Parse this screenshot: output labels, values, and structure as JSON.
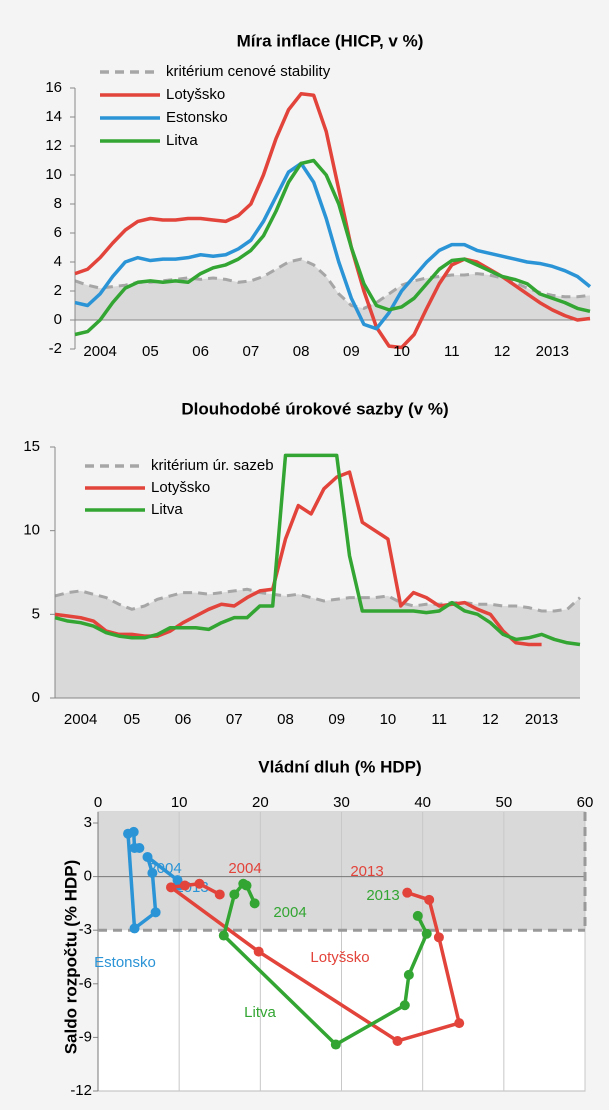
{
  "chart_data": [
    {
      "type": "line",
      "title": "Míra inflace (HICP, v %)",
      "categories": [
        null,
        null,
        "2004",
        null,
        null,
        null,
        "05",
        null,
        null,
        null,
        "06",
        null,
        null,
        null,
        "07",
        null,
        null,
        null,
        "08",
        null,
        null,
        null,
        "09",
        null,
        null,
        null,
        "10",
        null,
        null,
        null,
        "11",
        null,
        null,
        null,
        "12",
        null,
        null,
        null,
        "2013",
        null,
        null,
        null
      ],
      "ylim": [
        -2,
        16
      ],
      "yticks": [
        -2,
        0,
        2,
        4,
        6,
        8,
        10,
        12,
        14,
        16
      ],
      "series": [
        {
          "name": "kritérium cenové stability",
          "style": "area",
          "color": "#a6a6a6",
          "fill": "#d9d9d9",
          "values": [
            2.7,
            2.4,
            2.2,
            2.3,
            2.4,
            2.6,
            2.6,
            2.7,
            2.8,
            2.9,
            2.8,
            2.9,
            2.8,
            2.6,
            2.7,
            3.0,
            3.5,
            4.0,
            4.2,
            3.8,
            3.0,
            1.8,
            1.0,
            0.8,
            1.2,
            1.8,
            2.4,
            2.7,
            2.9,
            3.0,
            3.1,
            3.1,
            3.2,
            3.1,
            2.9,
            2.6,
            2.2,
            1.9,
            1.7,
            1.6,
            1.6,
            1.7
          ]
        },
        {
          "name": "Lotyšsko",
          "color": "#e2433a",
          "values": [
            3.2,
            3.5,
            4.3,
            5.3,
            6.2,
            6.8,
            7.0,
            6.9,
            6.9,
            7.0,
            7.0,
            6.9,
            6.8,
            7.2,
            8.0,
            10,
            12.5,
            14.5,
            15.6,
            15.5,
            13,
            9,
            5,
            2,
            -0.5,
            -1.8,
            -1.9,
            -1,
            0.8,
            2.5,
            3.8,
            4.2,
            4.0,
            3.5,
            3.0,
            2.4,
            1.8,
            1.2,
            0.7,
            0.3,
            0.0,
            0.1
          ]
        },
        {
          "name": "Estonsko",
          "color": "#2b94d6",
          "values": [
            1.2,
            1.0,
            1.8,
            3.0,
            4.0,
            4.3,
            4.1,
            4.2,
            4.2,
            4.3,
            4.5,
            4.4,
            4.5,
            4.9,
            5.5,
            6.8,
            8.5,
            10.2,
            10.8,
            9.5,
            7.0,
            4.0,
            1.5,
            -0.3,
            -0.6,
            0.5,
            2.0,
            3.0,
            4.0,
            4.8,
            5.2,
            5.2,
            4.8,
            4.6,
            4.4,
            4.2,
            4.0,
            3.9,
            3.7,
            3.4,
            3.0,
            2.3
          ]
        },
        {
          "name": "Litva",
          "color": "#33a532",
          "values": [
            -1.0,
            -0.8,
            0.0,
            1.2,
            2.2,
            2.6,
            2.7,
            2.6,
            2.7,
            2.6,
            3.2,
            3.6,
            3.8,
            4.2,
            4.8,
            5.8,
            7.5,
            9.5,
            10.8,
            11.0,
            10.0,
            8.0,
            5.0,
            2.5,
            1.0,
            0.7,
            0.9,
            1.5,
            2.5,
            3.5,
            4.1,
            4.2,
            3.8,
            3.4,
            3.0,
            2.8,
            2.5,
            1.8,
            1.5,
            1.2,
            0.8,
            0.6
          ]
        }
      ]
    },
    {
      "type": "line",
      "title": "Dlouhodobé úrokové sazby (v %)",
      "categories": [
        null,
        null,
        "2004",
        null,
        null,
        null,
        "05",
        null,
        null,
        null,
        "06",
        null,
        null,
        null,
        "07",
        null,
        null,
        null,
        "08",
        null,
        null,
        null,
        "09",
        null,
        null,
        null,
        "10",
        null,
        null,
        null,
        "11",
        null,
        null,
        null,
        "12",
        null,
        null,
        null,
        "2013",
        null,
        null,
        null
      ],
      "ylim": [
        0,
        15
      ],
      "yticks": [
        0,
        5,
        10,
        15
      ],
      "series": [
        {
          "name": "kritérium úr. sazeb",
          "style": "area",
          "color": "#a6a6a6",
          "fill": "#d9d9d9",
          "values": [
            6.1,
            6.3,
            6.4,
            6.2,
            6.0,
            5.6,
            5.3,
            5.5,
            5.9,
            6.1,
            6.3,
            6.3,
            6.2,
            6.3,
            6.4,
            6.5,
            6.3,
            6.2,
            6.1,
            6.2,
            6.0,
            5.8,
            5.9,
            6.0,
            6.0,
            6.0,
            6.1,
            5.7,
            5.5,
            5.6,
            5.6,
            5.7,
            5.7,
            5.6,
            5.6,
            5.5,
            5.5,
            5.4,
            5.2,
            5.2,
            5.3,
            6.0
          ]
        },
        {
          "name": "Lotyšsko",
          "color": "#e2433a",
          "values": [
            5.0,
            4.9,
            4.8,
            4.6,
            4.0,
            3.8,
            3.8,
            3.7,
            3.7,
            4.0,
            4.5,
            4.9,
            5.3,
            5.6,
            5.5,
            6.0,
            6.4,
            6.5,
            9.5,
            11.5,
            11.0,
            12.5,
            13.2,
            13.5,
            10.5,
            10.0,
            9.5,
            5.5,
            6.3,
            6.0,
            5.5,
            5.6,
            5.7,
            5.3,
            5.0,
            4.0,
            3.3,
            3.2,
            3.2,
            null,
            null,
            null
          ]
        },
        {
          "name": "Litva",
          "color": "#33a532",
          "values": [
            4.8,
            4.6,
            4.5,
            4.3,
            3.9,
            3.7,
            3.6,
            3.6,
            3.8,
            4.2,
            4.2,
            4.2,
            4.1,
            4.5,
            4.8,
            4.8,
            5.5,
            5.5,
            14.5,
            14.5,
            14.5,
            14.5,
            14.5,
            8.5,
            5.2,
            5.2,
            5.2,
            5.2,
            5.2,
            5.1,
            5.2,
            5.7,
            5.2,
            5.0,
            4.5,
            3.8,
            3.5,
            3.6,
            3.8,
            3.5,
            3.3,
            3.2
          ]
        }
      ]
    },
    {
      "type": "scatter",
      "title": "Vládní dluh (% HDP)",
      "y_label": "Saldo rozpočtu (% HDP)",
      "xlim": [
        0,
        60
      ],
      "xticks": [
        0,
        10,
        20,
        30,
        40,
        50,
        60
      ],
      "ylim": [
        -12,
        3
      ],
      "yticks": [
        3,
        0,
        -3,
        -6,
        -9,
        -12
      ],
      "reference": {
        "x": 60,
        "y": -3
      },
      "year_labels": [
        "2004",
        "2013"
      ],
      "series": [
        {
          "name": "Estonsko",
          "color": "#2b94d6",
          "x": [
            5.1,
            4.5,
            4.4,
            3.7,
            4.5,
            7.1,
            6.7,
            6.1,
            9.8,
            10.0
          ],
          "values": [
            1.6,
            1.6,
            2.5,
            2.4,
            -2.9,
            -2.0,
            0.2,
            1.1,
            -0.2,
            -0.5
          ]
        },
        {
          "name": "Lotyšsko",
          "color": "#e2433a",
          "x": [
            15.0,
            12.5,
            10.7,
            9.0,
            19.8,
            36.9,
            44.5,
            42.0,
            40.8,
            38.1
          ],
          "values": [
            -1.0,
            -0.4,
            -0.5,
            -0.6,
            -4.2,
            -9.2,
            -8.2,
            -3.4,
            -1.3,
            -0.9
          ]
        },
        {
          "name": "Litva",
          "color": "#33a532",
          "x": [
            19.3,
            18.3,
            17.9,
            16.8,
            15.5,
            29.3,
            37.8,
            38.3,
            40.5,
            39.4
          ],
          "values": [
            -1.5,
            -0.5,
            -0.4,
            -1.0,
            -3.3,
            -9.4,
            -7.2,
            -5.5,
            -3.2,
            -2.2
          ]
        }
      ]
    }
  ]
}
